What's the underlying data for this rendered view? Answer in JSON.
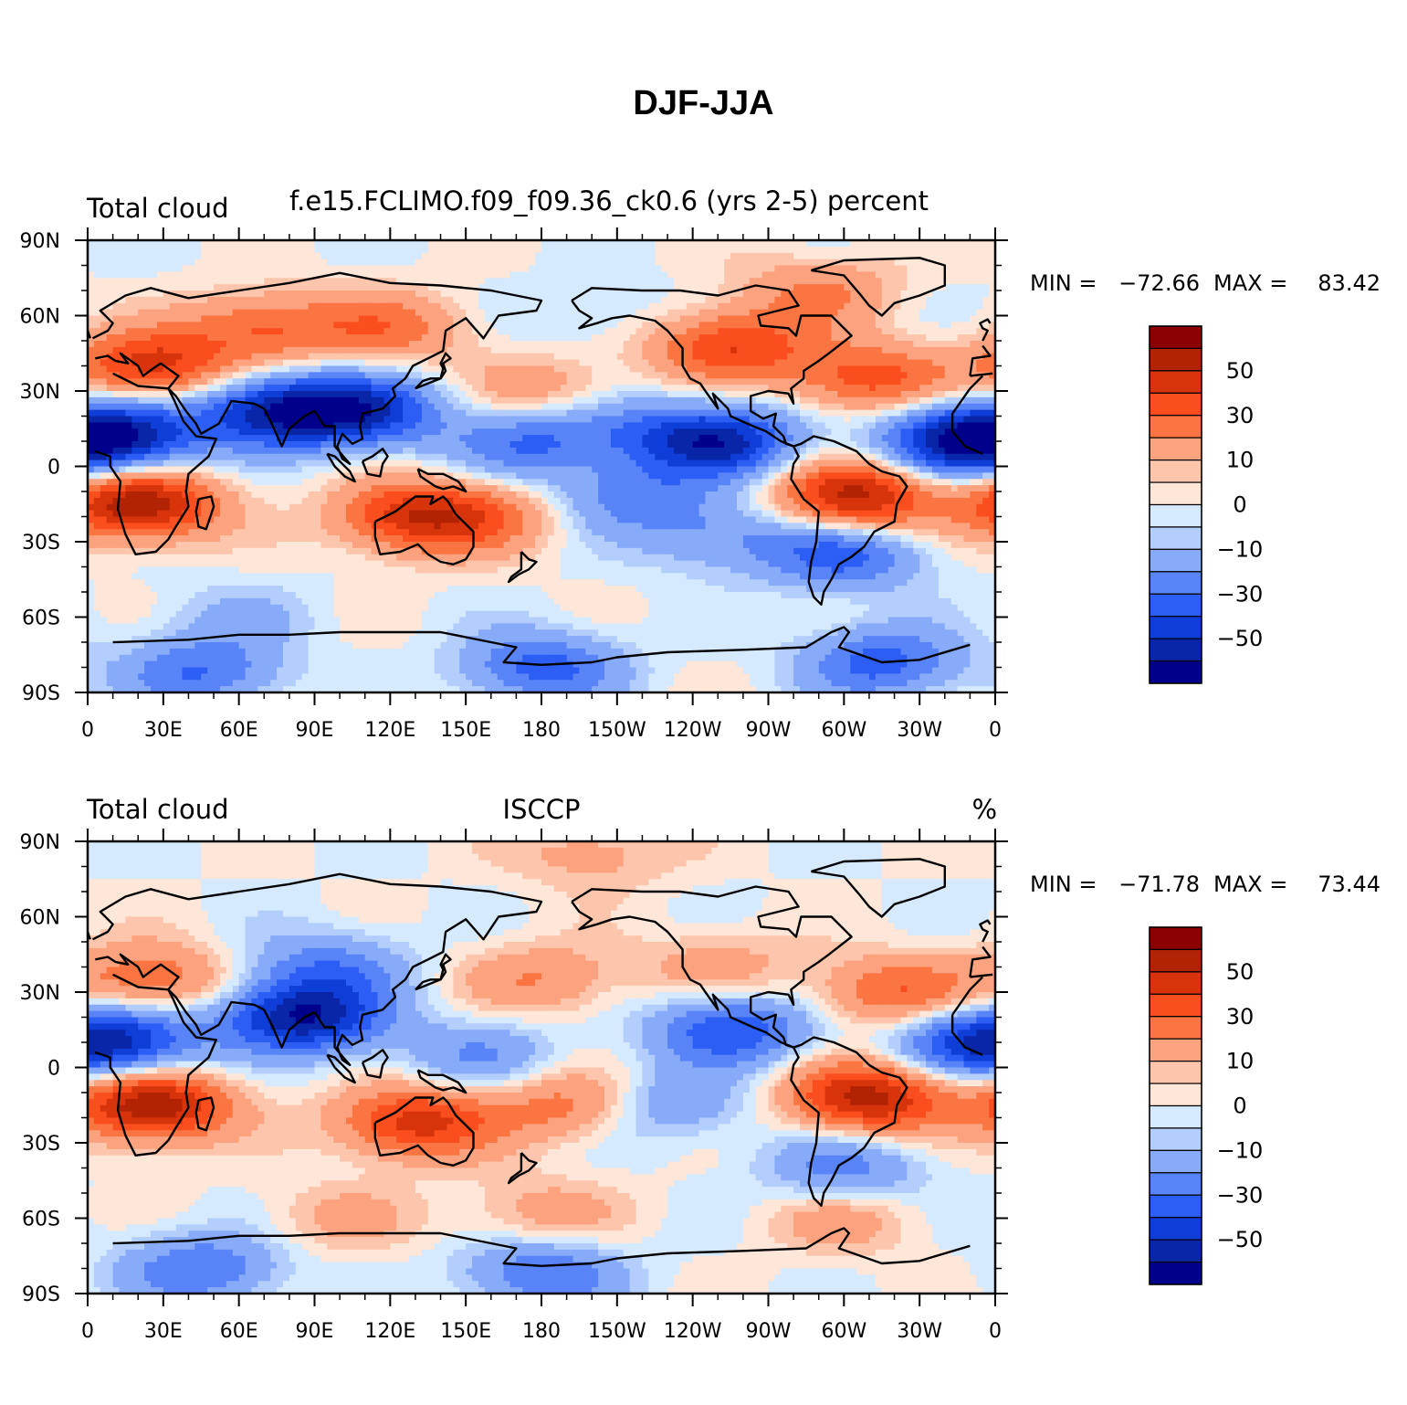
{
  "title": "DJF-JJA",
  "chart_data": [
    {
      "type": "heatmap",
      "title_left": "Total cloud",
      "title_center": "f.e15.FCLIMO.f09_f09.36_ck0.6 (yrs 2-5) percent",
      "title_right": "",
      "stats": {
        "min_label": "MIN =",
        "min": "−72.66",
        "max_label": "MAX =",
        "max": "83.42"
      },
      "xticks": [
        "0",
        "30E",
        "60E",
        "90E",
        "120E",
        "150E",
        "180",
        "150W",
        "120W",
        "90W",
        "60W",
        "30W",
        "0"
      ],
      "yticks": [
        "90N",
        "60N",
        "30N",
        "0",
        "30S",
        "60S",
        "90S"
      ],
      "xlim": [
        0,
        360
      ],
      "ylim": [
        -90,
        90
      ],
      "colorbar": {
        "levels": [
          -60,
          -50,
          -40,
          -30,
          -20,
          -10,
          -5,
          0,
          5,
          10,
          20,
          30,
          40,
          50,
          60
        ],
        "labels": [
          "50",
          "30",
          "10",
          "0",
          "−10",
          "−30",
          "−50"
        ],
        "colors": [
          "#8b0000",
          "#b22303",
          "#d8340b",
          "#fa4e1f",
          "#fb7542",
          "#fca27e",
          "#fdc6ac",
          "#fee6d8",
          "#d6eaff",
          "#b3cefc",
          "#87aaf9",
          "#5884f7",
          "#2c5ef5",
          "#0e3ed7",
          "#0a26a8",
          "#00008b"
        ]
      },
      "features": [
        {
          "lon": 20,
          "lat": -15,
          "v": 60
        },
        {
          "lon": 25,
          "lat": 40,
          "v": 45
        },
        {
          "lon": 70,
          "lat": 55,
          "v": 30
        },
        {
          "lon": 120,
          "lat": 55,
          "v": 25
        },
        {
          "lon": 15,
          "lat": 12,
          "v": -50
        },
        {
          "lon": 75,
          "lat": 22,
          "v": -55
        },
        {
          "lon": 110,
          "lat": 22,
          "v": -45
        },
        {
          "lon": 130,
          "lat": -20,
          "v": 45
        },
        {
          "lon": 180,
          "lat": 30,
          "v": 18
        },
        {
          "lon": 175,
          "lat": 10,
          "v": -30
        },
        {
          "lon": 215,
          "lat": -12,
          "v": -25
        },
        {
          "lon": 215,
          "lat": 15,
          "v": -15
        },
        {
          "lon": 255,
          "lat": 48,
          "v": 40
        },
        {
          "lon": 250,
          "lat": 10,
          "v": -55
        },
        {
          "lon": 305,
          "lat": -12,
          "v": 55
        },
        {
          "lon": 310,
          "lat": 35,
          "v": 35
        },
        {
          "lon": 345,
          "lat": 10,
          "v": -55
        },
        {
          "lon": 300,
          "lat": -35,
          "v": -35
        },
        {
          "lon": 160,
          "lat": -20,
          "v": 18
        },
        {
          "lon": 250,
          "lat": -28,
          "v": -20
        },
        {
          "lon": 60,
          "lat": -60,
          "v": -10
        },
        {
          "lon": 180,
          "lat": -80,
          "v": -35
        },
        {
          "lon": 45,
          "lat": -82,
          "v": -30
        },
        {
          "lon": 315,
          "lat": -78,
          "v": -35
        },
        {
          "lon": 290,
          "lat": 70,
          "v": 20
        },
        {
          "lon": 200,
          "lat": 60,
          "v": -8
        }
      ]
    },
    {
      "type": "heatmap",
      "title_left": "Total cloud",
      "title_center": "ISCCP",
      "title_right": "%",
      "stats": {
        "min_label": "MIN =",
        "min": "−71.78",
        "max_label": "MAX =",
        "max": "73.44"
      },
      "xticks": [
        "0",
        "30E",
        "60E",
        "90E",
        "120E",
        "150E",
        "180",
        "150W",
        "120W",
        "90W",
        "60W",
        "30W",
        "0"
      ],
      "yticks": [
        "90N",
        "60N",
        "30N",
        "0",
        "30S",
        "60S",
        "90S"
      ],
      "xlim": [
        0,
        360
      ],
      "ylim": [
        -90,
        90
      ],
      "colorbar": {
        "levels": [
          -60,
          -50,
          -40,
          -30,
          -20,
          -10,
          -5,
          0,
          5,
          10,
          20,
          30,
          40,
          50,
          60
        ],
        "labels": [
          "50",
          "30",
          "10",
          "0",
          "−10",
          "−30",
          "−50"
        ],
        "colors": [
          "#8b0000",
          "#b22303",
          "#d8340b",
          "#fa4e1f",
          "#fb7542",
          "#fca27e",
          "#fdc6ac",
          "#fee6d8",
          "#d6eaff",
          "#b3cefc",
          "#87aaf9",
          "#5884f7",
          "#2c5ef5",
          "#0e3ed7",
          "#0a26a8",
          "#00008b"
        ]
      },
      "features": [
        {
          "lon": 25,
          "lat": -15,
          "v": 60
        },
        {
          "lon": 25,
          "lat": 35,
          "v": 30
        },
        {
          "lon": 15,
          "lat": 10,
          "v": -40
        },
        {
          "lon": 85,
          "lat": 20,
          "v": -60
        },
        {
          "lon": 95,
          "lat": 40,
          "v": -25
        },
        {
          "lon": 130,
          "lat": -22,
          "v": 45
        },
        {
          "lon": 180,
          "lat": 35,
          "v": 20
        },
        {
          "lon": 190,
          "lat": -15,
          "v": 25
        },
        {
          "lon": 230,
          "lat": -15,
          "v": -20
        },
        {
          "lon": 255,
          "lat": 15,
          "v": -40
        },
        {
          "lon": 310,
          "lat": -12,
          "v": 55
        },
        {
          "lon": 320,
          "lat": 30,
          "v": 30
        },
        {
          "lon": 350,
          "lat": 10,
          "v": -35
        },
        {
          "lon": 300,
          "lat": -40,
          "v": -25
        },
        {
          "lon": 250,
          "lat": 40,
          "v": 15
        },
        {
          "lon": 100,
          "lat": -60,
          "v": 12
        },
        {
          "lon": 180,
          "lat": -58,
          "v": 15
        },
        {
          "lon": 300,
          "lat": -60,
          "v": 15
        },
        {
          "lon": 180,
          "lat": -82,
          "v": -30
        },
        {
          "lon": 45,
          "lat": -80,
          "v": -30
        },
        {
          "lon": 200,
          "lat": 85,
          "v": 15
        },
        {
          "lon": 155,
          "lat": 5,
          "v": -20
        }
      ]
    }
  ]
}
